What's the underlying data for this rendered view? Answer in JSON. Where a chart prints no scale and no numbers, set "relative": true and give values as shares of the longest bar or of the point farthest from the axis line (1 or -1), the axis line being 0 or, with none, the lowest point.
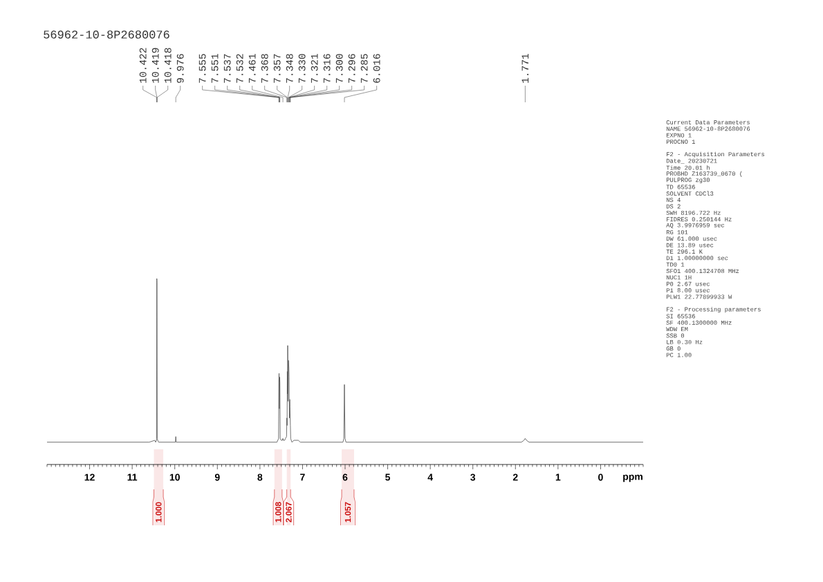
{
  "chart_data": {
    "type": "line",
    "title": "56962-10-8P2680076",
    "xlabel": "ppm",
    "relative": true,
    "color": "#4d4d4d",
    "x": [
      13,
      12,
      11,
      10.6,
      10.47,
      10.45,
      10.43,
      10.428,
      10.422,
      10.419,
      10.418,
      10.412,
      10.4,
      10.38,
      10.1,
      9.985,
      9.976,
      9.967,
      9,
      8,
      7.6,
      7.562,
      7.555,
      7.551,
      7.544,
      7.537,
      7.532,
      7.525,
      7.5,
      7.475,
      7.461,
      7.45,
      7.42,
      7.4,
      7.375,
      7.368,
      7.362,
      7.357,
      7.352,
      7.348,
      7.339,
      7.33,
      7.321,
      7.316,
      7.308,
      7.3,
      7.296,
      7.285,
      7.278,
      7.25,
      7.2,
      7.15,
      7.1,
      7.05,
      6.5,
      6.05,
      6.03,
      6.016,
      6.002,
      5.98,
      5,
      4,
      3,
      2,
      1.86,
      1.8,
      1.771,
      1.74,
      1.68,
      1,
      0,
      -1
    ],
    "values": [
      0.12,
      0.12,
      0.12,
      0.12,
      0.13,
      0.12,
      0.13,
      0.14,
      1,
      0.99,
      0.98,
      0.14,
      0.13,
      0.12,
      0.12,
      0.12,
      0.15,
      0.12,
      0.12,
      0.12,
      0.12,
      0.14,
      0.45,
      0.49,
      0.3,
      0.47,
      0.44,
      0.14,
      0.13,
      0.13,
      0.14,
      0.13,
      0.13,
      0.14,
      0.15,
      0.25,
      0.21,
      0.5,
      0.38,
      0.64,
      0.34,
      0.56,
      0.52,
      0.47,
      0.25,
      0.35,
      0.31,
      0.21,
      0.14,
      0.12,
      0.13,
      0.13,
      0.13,
      0.12,
      0.12,
      0.12,
      0.14,
      0.43,
      0.14,
      0.12,
      0.12,
      0.12,
      0.12,
      0.12,
      0.12,
      0.13,
      0.14,
      0.13,
      0.12,
      0.12,
      0.12,
      0.12
    ],
    "xlim": [
      13,
      -1
    ],
    "xticks": [
      {
        "value": 13,
        "label": null
      },
      {
        "value": 12.9,
        "label": null
      },
      {
        "value": 12.8,
        "label": null
      },
      {
        "value": 12.7,
        "label": null
      },
      {
        "value": 12.6,
        "label": null
      },
      {
        "value": 12.5,
        "label": null
      },
      {
        "value": 12.4,
        "label": null
      },
      {
        "value": 12.3,
        "label": null
      },
      {
        "value": 12.2,
        "label": null
      },
      {
        "value": 12.1,
        "label": null
      },
      12,
      {
        "value": 11.9,
        "label": null
      },
      {
        "value": 11.8,
        "label": null
      },
      {
        "value": 11.7,
        "label": null
      },
      {
        "value": 11.6,
        "label": null
      },
      {
        "value": 11.5,
        "label": null
      },
      {
        "value": 11.4,
        "label": null
      },
      {
        "value": 11.3,
        "label": null
      },
      {
        "value": 11.2,
        "label": null
      },
      {
        "value": 11.1,
        "label": null
      },
      11,
      {
        "value": 10.9,
        "label": null
      },
      {
        "value": 10.8,
        "label": null
      },
      {
        "value": 10.7,
        "label": null
      },
      {
        "value": 10.6,
        "label": null
      },
      {
        "value": 10.5,
        "label": null
      },
      {
        "value": 10.4,
        "label": null
      },
      {
        "value": 10.3,
        "label": null
      },
      {
        "value": 10.2,
        "label": null
      },
      {
        "value": 10.1,
        "label": null
      },
      10,
      {
        "value": 9.9,
        "label": null
      },
      {
        "value": 9.8,
        "label": null
      },
      {
        "value": 9.7,
        "label": null
      },
      {
        "value": 9.6,
        "label": null
      },
      {
        "value": 9.5,
        "label": null
      },
      {
        "value": 9.4,
        "label": null
      },
      {
        "value": 9.3,
        "label": null
      },
      {
        "value": 9.2,
        "label": null
      },
      {
        "value": 9.1,
        "label": null
      },
      9,
      {
        "value": 8.9,
        "label": null
      },
      {
        "value": 8.8,
        "label": null
      },
      {
        "value": 8.7,
        "label": null
      },
      {
        "value": 8.6,
        "label": null
      },
      {
        "value": 8.5,
        "label": null
      },
      {
        "value": 8.4,
        "label": null
      },
      {
        "value": 8.3,
        "label": null
      },
      {
        "value": 8.2,
        "label": null
      },
      {
        "value": 8.1,
        "label": null
      },
      8,
      {
        "value": 7.9,
        "label": null
      },
      {
        "value": 7.8,
        "label": null
      },
      {
        "value": 7.7,
        "label": null
      },
      {
        "value": 7.6,
        "label": null
      },
      {
        "value": 7.5,
        "label": null
      },
      {
        "value": 7.4,
        "label": null
      },
      {
        "value": 7.3,
        "label": null
      },
      {
        "value": 7.2,
        "label": null
      },
      {
        "value": 7.1,
        "label": null
      },
      7,
      {
        "value": 6.9,
        "label": null
      },
      {
        "value": 6.8,
        "label": null
      },
      {
        "value": 6.7,
        "label": null
      },
      {
        "value": 6.6,
        "label": null
      },
      {
        "value": 6.5,
        "label": null
      },
      {
        "value": 6.4,
        "label": null
      },
      {
        "value": 6.3,
        "label": null
      },
      {
        "value": 6.2,
        "label": null
      },
      {
        "value": 6.1,
        "label": null
      },
      6,
      {
        "value": 5.9,
        "label": null
      },
      {
        "value": 5.8,
        "label": null
      },
      {
        "value": 5.7,
        "label": null
      },
      {
        "value": 5.6,
        "label": null
      },
      {
        "value": 5.5,
        "label": null
      },
      {
        "value": 5.4,
        "label": null
      },
      {
        "value": 5.3,
        "label": null
      },
      {
        "value": 5.2,
        "label": null
      },
      {
        "value": 5.1,
        "label": null
      },
      5,
      {
        "value": 4.9,
        "label": null
      },
      {
        "value": 4.8,
        "label": null
      },
      {
        "value": 4.7,
        "label": null
      },
      {
        "value": 4.6,
        "label": null
      },
      {
        "value": 4.5,
        "label": null
      },
      {
        "value": 4.4,
        "label": null
      },
      {
        "value": 4.3,
        "label": null
      },
      {
        "value": 4.2,
        "label": null
      },
      {
        "value": 4.1,
        "label": null
      },
      4,
      {
        "value": 3.9,
        "label": null
      },
      {
        "value": 3.8,
        "label": null
      },
      {
        "value": 3.7,
        "label": null
      },
      {
        "value": 3.6,
        "label": null
      },
      {
        "value": 3.5,
        "label": null
      },
      {
        "value": 3.4,
        "label": null
      },
      {
        "value": 3.3,
        "label": null
      },
      {
        "value": 3.2,
        "label": null
      },
      {
        "value": 3.1,
        "label": null
      },
      3,
      {
        "value": 2.9,
        "label": null
      },
      {
        "value": 2.8,
        "label": null
      },
      {
        "value": 2.7,
        "label": null
      },
      {
        "value": 2.6,
        "label": null
      },
      {
        "value": 2.5,
        "label": null
      },
      {
        "value": 2.4,
        "label": null
      },
      {
        "value": 2.3,
        "label": null
      },
      {
        "value": 2.2,
        "label": null
      },
      {
        "value": 2.1,
        "label": null
      },
      2,
      {
        "value": 1.9,
        "label": null
      },
      {
        "value": 1.8,
        "label": null
      },
      {
        "value": 1.7,
        "label": null
      },
      {
        "value": 1.6,
        "label": null
      },
      {
        "value": 1.5,
        "label": null
      },
      {
        "value": 1.4,
        "label": null
      },
      {
        "value": 1.3,
        "label": null
      },
      {
        "value": 1.2,
        "label": null
      },
      {
        "value": 1.1,
        "label": null
      },
      1,
      {
        "value": 0.9,
        "label": null
      },
      {
        "value": 0.8,
        "label": null
      },
      {
        "value": 0.7,
        "label": null
      },
      {
        "value": 0.6,
        "label": null
      },
      {
        "value": 0.5,
        "label": null
      },
      {
        "value": 0.4,
        "label": null
      },
      {
        "value": 0.3,
        "label": null
      },
      {
        "value": 0.2,
        "label": null
      },
      {
        "value": 0.1,
        "label": null
      },
      0,
      {
        "value": -0.1,
        "label": null
      },
      {
        "value": -0.2,
        "label": null
      },
      {
        "value": -0.3,
        "label": null
      },
      {
        "value": -0.4,
        "label": null
      },
      {
        "value": -0.5,
        "label": null
      },
      {
        "value": -0.6,
        "label": null
      },
      {
        "value": -0.7,
        "label": null
      },
      {
        "value": -0.8,
        "label": null
      },
      {
        "value": -0.9,
        "label": null
      },
      {
        "value": -1,
        "label": null
      }
    ],
    "bands": [
      {
        "axis": "x",
        "from": 10.49,
        "to": 10.27,
        "label": "1.000"
      },
      {
        "axis": "x",
        "from": 7.66,
        "to": 7.48,
        "label": "1.008"
      },
      {
        "axis": "x",
        "from": 7.37,
        "to": 7.28,
        "label": "2.067"
      },
      {
        "axis": "x",
        "from": 6.08,
        "to": 5.79,
        "label": "1.057"
      }
    ],
    "annotations": [
      {
        "text": "10.422",
        "x": 10.422
      },
      {
        "text": "10.419",
        "x": 10.419
      },
      {
        "text": "10.418",
        "x": 10.418
      },
      {
        "text": "9.976",
        "x": 9.976
      },
      {
        "text": "7.555",
        "x": 7.555
      },
      {
        "text": "7.551",
        "x": 7.551
      },
      {
        "text": "7.537",
        "x": 7.537
      },
      {
        "text": "7.532",
        "x": 7.532
      },
      {
        "text": "7.461",
        "x": 7.461
      },
      {
        "text": "7.368",
        "x": 7.368
      },
      {
        "text": "7.357",
        "x": 7.357
      },
      {
        "text": "7.348",
        "x": 7.348
      },
      {
        "text": "7.330",
        "x": 7.33
      },
      {
        "text": "7.321",
        "x": 7.321
      },
      {
        "text": "7.316",
        "x": 7.316
      },
      {
        "text": "7.300",
        "x": 7.3
      },
      {
        "text": "7.296",
        "x": 7.296
      },
      {
        "text": "7.285",
        "x": 7.285
      },
      {
        "text": "6.016",
        "x": 6.016
      },
      {
        "text": "1.771",
        "x": 1.771
      },
      "Current Data Parameters",
      "NAME 56962-10-8P2680076",
      "EXPNO 1",
      "PROCNO 1",
      "F2 - Acquisition Parameters",
      "Date_ 20230721",
      "Time 20.01 h",
      "PROBHD Z163739_0670 (",
      "PULPROG zg30",
      "TD 65536",
      "SOLVENT CDCl3",
      "NS 4",
      "DS 2",
      "SWH 8196.722 Hz",
      "FIDRES 0.250144 Hz",
      "AQ 3.9976959 sec",
      "RG 101",
      "DW 61.000 usec",
      "DE 13.89 usec",
      "TE 296.1 K",
      "D1 1.00000000 sec",
      "TD0 1",
      "SFO1 400.1324708 MHz",
      "NUC1 1H",
      "P0 2.67 usec",
      "P1 8.00 usec",
      "PLW1 22.77899933 W",
      "F2 - Processing parameters",
      "SI 65536",
      "SF 400.1300000 MHz",
      "WDW EM",
      "SSB 0",
      "LB 0.30 Hz",
      "GB 0",
      "PC 1.00"
    ]
  }
}
